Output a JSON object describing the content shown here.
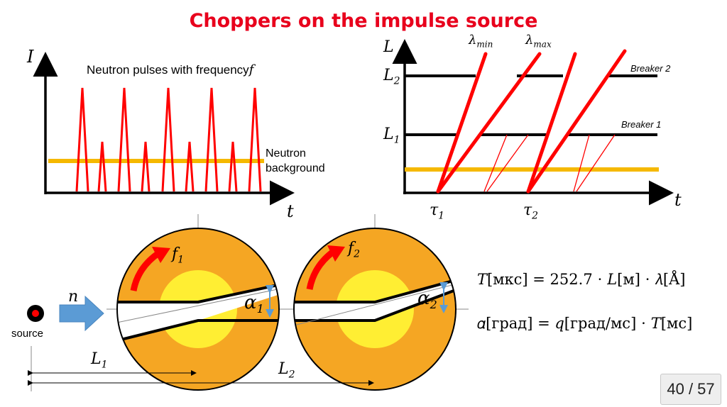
{
  "slide": {
    "title": "Choppers on the impulse source",
    "page_number": "40 / 57"
  },
  "left_plot": {
    "y_axis_label": "I",
    "x_axis_label": "t",
    "caption": "Neutron pulses with frequency",
    "caption_symbol": "f",
    "background_label_line1": "Neutron",
    "background_label_line2": "background"
  },
  "right_plot": {
    "y_axis_label": "L",
    "x_axis_label": "t",
    "lambda_min": "λ",
    "lambda_min_sub": "min",
    "lambda_max": "λ",
    "lambda_max_sub": "max",
    "breaker2": "Breaker 2",
    "breaker1": "Breaker 1",
    "L2": "L",
    "L2_sub": "2",
    "L1": "L",
    "L1_sub": "1",
    "tau1": "τ",
    "tau1_sub": "1",
    "tau2": "τ",
    "tau2_sub": "2"
  },
  "choppers": {
    "source_label": "source",
    "beam_label": "n",
    "f1": "f",
    "f1_sub": "1",
    "f2": "f",
    "f2_sub": "2",
    "alpha1": "α",
    "alpha1_sub": "1",
    "alpha2": "α",
    "alpha2_sub": "2",
    "L1": "L",
    "L1_sub": "1",
    "L2": "L",
    "L2_sub": "2"
  },
  "formulas": {
    "formula1": "𝑇[мкс] = 252.7 ⋅ 𝐿[м] ⋅ 𝜆[Å]",
    "formula2": "𝛼[град] = 𝑞[град/мс] ⋅ 𝑇[мс]"
  },
  "colors": {
    "title": "#e8001c",
    "pulse": "#ff0000",
    "background_line": "#f5b800",
    "disk_outer": "#f5a623",
    "disk_inner": "#ffee33",
    "beam_arrow": "#5b9bd5"
  }
}
